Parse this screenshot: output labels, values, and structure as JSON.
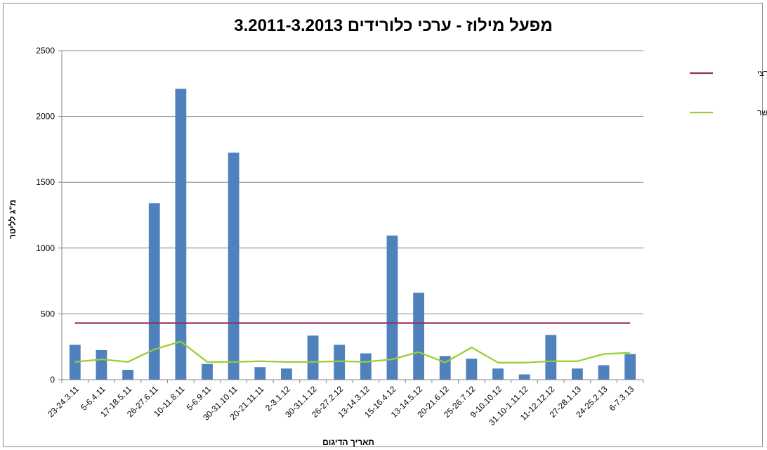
{
  "chart_data": {
    "type": "bar",
    "title": "מפעל מילוז - ערכי כלורידים 3.2011-3.2013",
    "xlabel": "תאריך הדיגום",
    "ylabel": "מ\"ג לליטר",
    "ylim": [
      0,
      2500
    ],
    "yticks": [
      0,
      500,
      1000,
      1500,
      2000,
      2500
    ],
    "grid": true,
    "legend_position": "right",
    "categories": [
      "23-24.3.11",
      "5-6.4.11",
      "17-18.5.11",
      "26-27.6.11",
      "10-11.8.11",
      "5-6.9.11",
      "30-31.10.11",
      "20-21.11.11",
      "2-3.1.12",
      "30-31.1.12",
      "26-27.2.12",
      "13-14.3.12",
      "15-16.4.12",
      "13-14.5.12",
      "20-21.6.12",
      "25-26.7.12",
      "9-10.10.12",
      "31.10-1.11.12",
      "11-12.12.12",
      "27-28.1.13",
      "24-25.2.13",
      "6-7.3.13"
    ],
    "series": [
      {
        "name": "",
        "kind": "bar",
        "color": "#4f81bd",
        "values": [
          265,
          225,
          75,
          1340,
          2210,
          120,
          1725,
          95,
          85,
          335,
          265,
          200,
          1095,
          660,
          180,
          160,
          85,
          40,
          340,
          85,
          110,
          195
        ]
      },
      {
        "name": "תקן ארצי",
        "kind": "line",
        "color": "#9b2d5e",
        "values": [
          430,
          430,
          430,
          430,
          430,
          430,
          430,
          430,
          430,
          430,
          430,
          430,
          430,
          430,
          430,
          430,
          430,
          430,
          430,
          430,
          430,
          430
        ]
      },
      {
        "name": "תקן מטה אשר",
        "kind": "line",
        "color": "#9acd32",
        "values": [
          135,
          155,
          135,
          230,
          290,
          135,
          135,
          140,
          135,
          135,
          140,
          135,
          155,
          210,
          130,
          245,
          130,
          130,
          140,
          140,
          195,
          205
        ]
      }
    ]
  }
}
